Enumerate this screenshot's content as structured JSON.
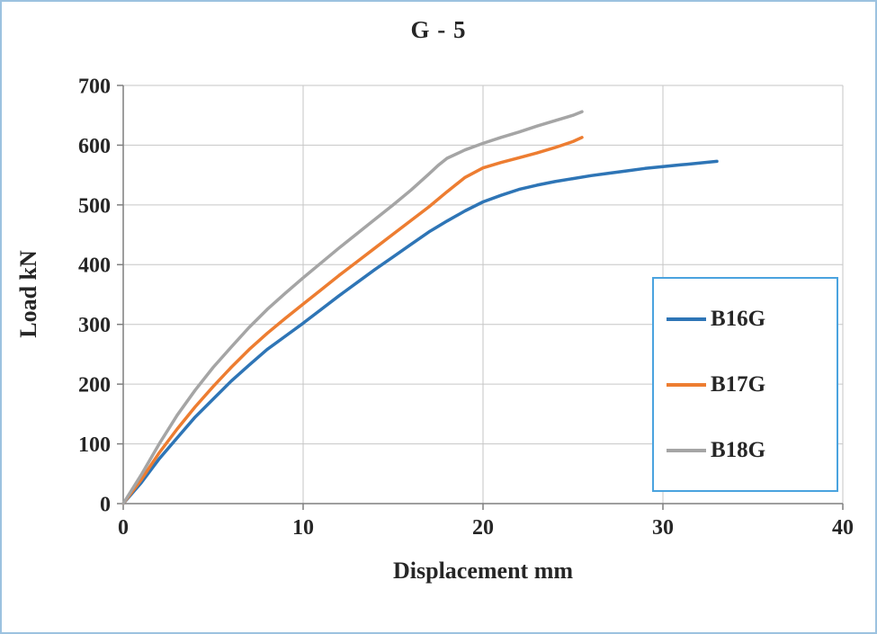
{
  "figure": {
    "border_color": "#9cc2e0"
  },
  "chart_data": {
    "type": "line",
    "title": "G - 5",
    "xlabel": "Displacement mm",
    "ylabel": "Load kN",
    "xlim": [
      0,
      40
    ],
    "ylim": [
      0,
      700
    ],
    "x_ticks": [
      0,
      10,
      20,
      30,
      40
    ],
    "y_ticks": [
      0,
      100,
      200,
      300,
      400,
      500,
      600,
      700
    ],
    "grid": true,
    "legend_position": "middle-right",
    "legend_border_color": "#4aa3df",
    "axis_color": "#7f7f7f",
    "grid_color": "#c6c6c6",
    "text_color": "#262626",
    "series": [
      {
        "name": "B16G",
        "color": "#2E75B6",
        "points": [
          [
            0,
            0
          ],
          [
            1,
            35
          ],
          [
            2,
            75
          ],
          [
            3,
            110
          ],
          [
            4,
            145
          ],
          [
            5,
            175
          ],
          [
            6,
            205
          ],
          [
            7,
            232
          ],
          [
            8,
            258
          ],
          [
            9,
            280
          ],
          [
            10,
            302
          ],
          [
            11,
            325
          ],
          [
            12,
            348
          ],
          [
            13,
            370
          ],
          [
            14,
            392
          ],
          [
            15,
            413
          ],
          [
            16,
            434
          ],
          [
            17,
            455
          ],
          [
            18,
            473
          ],
          [
            19,
            490
          ],
          [
            20,
            505
          ],
          [
            21,
            516
          ],
          [
            22,
            526
          ],
          [
            23,
            533
          ],
          [
            24,
            539
          ],
          [
            25,
            544
          ],
          [
            26,
            549
          ],
          [
            27,
            553
          ],
          [
            28,
            557
          ],
          [
            29,
            561
          ],
          [
            30,
            564
          ],
          [
            31,
            567
          ],
          [
            32,
            570
          ],
          [
            33,
            573
          ]
        ]
      },
      {
        "name": "B17G",
        "color": "#ED7D31",
        "points": [
          [
            0,
            0
          ],
          [
            1,
            40
          ],
          [
            2,
            85
          ],
          [
            3,
            125
          ],
          [
            4,
            162
          ],
          [
            5,
            196
          ],
          [
            6,
            228
          ],
          [
            7,
            258
          ],
          [
            8,
            285
          ],
          [
            9,
            310
          ],
          [
            10,
            334
          ],
          [
            11,
            358
          ],
          [
            12,
            382
          ],
          [
            13,
            405
          ],
          [
            14,
            428
          ],
          [
            15,
            451
          ],
          [
            16,
            474
          ],
          [
            17,
            497
          ],
          [
            18,
            522
          ],
          [
            19,
            546
          ],
          [
            20,
            562
          ],
          [
            21,
            571
          ],
          [
            22,
            579
          ],
          [
            23,
            587
          ],
          [
            24,
            596
          ],
          [
            25,
            606
          ],
          [
            25.5,
            613
          ]
        ]
      },
      {
        "name": "B18G",
        "color": "#A5A5A5",
        "points": [
          [
            0,
            0
          ],
          [
            1,
            48
          ],
          [
            2,
            100
          ],
          [
            3,
            148
          ],
          [
            4,
            190
          ],
          [
            5,
            228
          ],
          [
            6,
            262
          ],
          [
            7,
            295
          ],
          [
            8,
            325
          ],
          [
            9,
            352
          ],
          [
            10,
            378
          ],
          [
            11,
            403
          ],
          [
            12,
            428
          ],
          [
            13,
            452
          ],
          [
            14,
            476
          ],
          [
            15,
            500
          ],
          [
            16,
            525
          ],
          [
            17,
            552
          ],
          [
            17.5,
            566
          ],
          [
            18,
            578
          ],
          [
            19,
            592
          ],
          [
            20,
            603
          ],
          [
            21,
            613
          ],
          [
            22,
            622
          ],
          [
            23,
            632
          ],
          [
            24,
            641
          ],
          [
            25,
            650
          ],
          [
            25.5,
            656
          ]
        ]
      }
    ]
  }
}
